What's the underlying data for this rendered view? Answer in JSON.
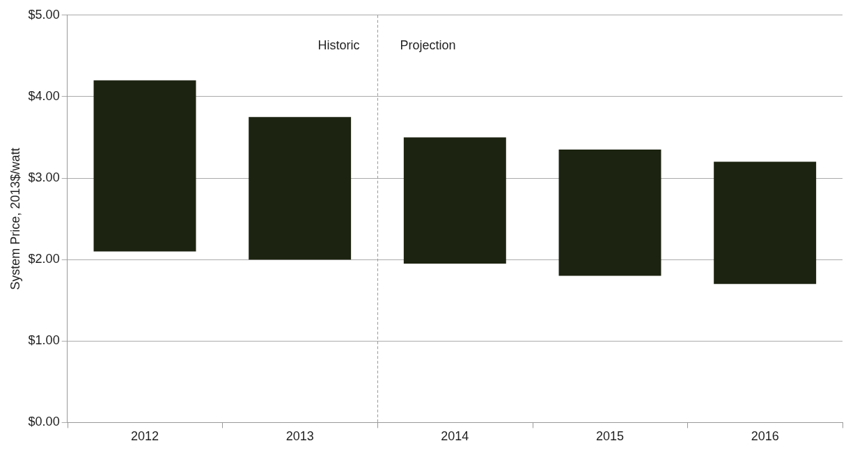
{
  "chart_data": {
    "type": "bar",
    "ylabel": "System Price, 2013$/watt",
    "x": [
      2012,
      2013,
      2014,
      2015,
      2016
    ],
    "xlim": [
      2011.5,
      2016.5
    ],
    "xticks": [
      2012,
      2013,
      2014,
      2015,
      2016
    ],
    "base": [
      2.1,
      2.0,
      1.95,
      1.8,
      1.7
    ],
    "values": [
      2.1,
      1.75,
      1.55,
      1.55,
      1.5
    ],
    "color": "#1c2310",
    "ylim": [
      0,
      5
    ],
    "yticks": [
      {
        "value": 0,
        "label": "$0.00"
      },
      {
        "value": 1,
        "label": "$1.00"
      },
      {
        "value": 2,
        "label": "$2.00"
      },
      {
        "value": 3,
        "label": "$3.00"
      },
      {
        "value": 4,
        "label": "$4.00"
      },
      {
        "value": 5,
        "label": "$5.00"
      }
    ],
    "grid": "y",
    "legend": false,
    "ref_lines": [
      {
        "axis": "x",
        "value": 2013.5,
        "line_style": "dashed",
        "color": "#999999"
      }
    ],
    "annotations": [
      "Historic",
      "Projection"
    ]
  }
}
